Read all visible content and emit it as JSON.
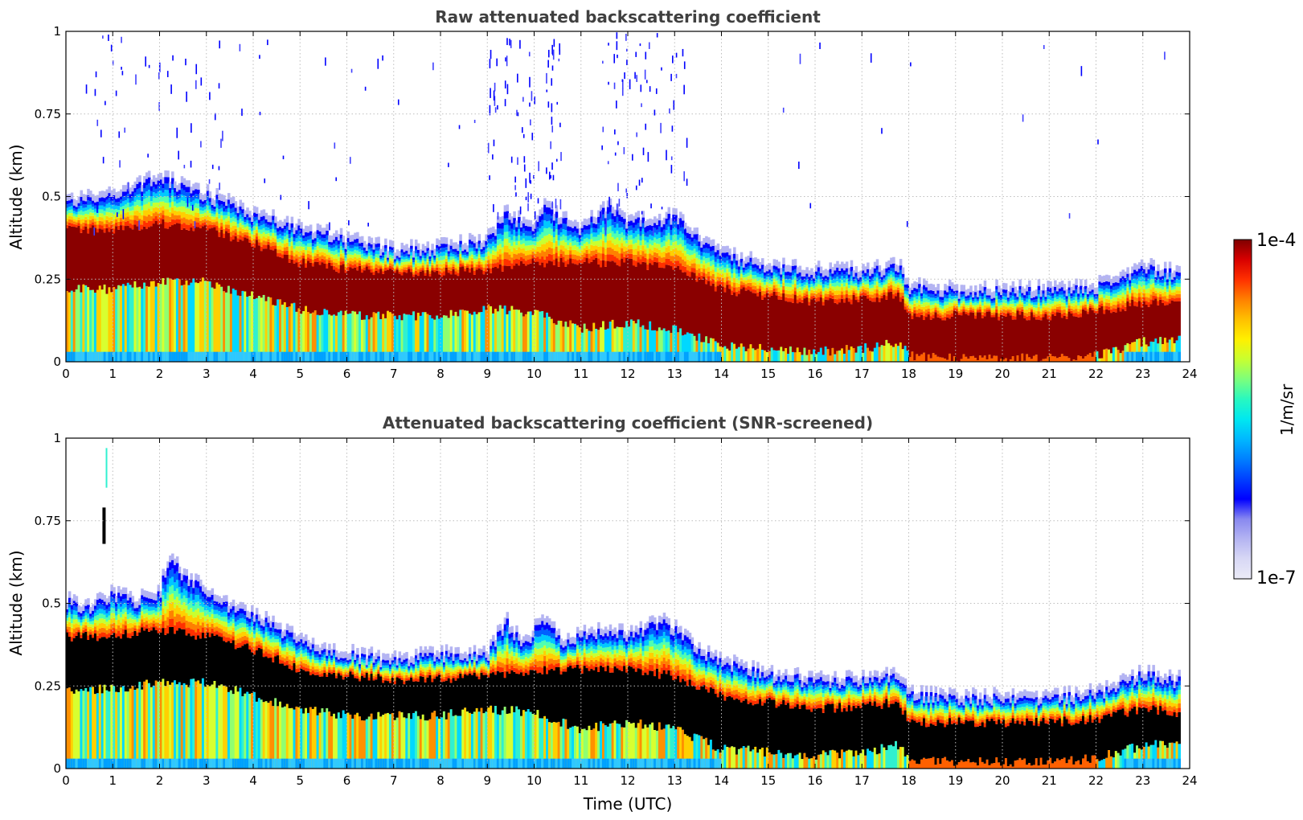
{
  "chart_data": [
    {
      "type": "heatmap",
      "title": "Raw attenuated backscattering coefficient",
      "ylabel": "Altitude (km)",
      "xlabel": "",
      "xlim": [
        0,
        24
      ],
      "ylim": [
        0,
        1
      ],
      "x_ticks": [
        "0",
        "1",
        "2",
        "3",
        "4",
        "5",
        "6",
        "7",
        "8",
        "9",
        "10",
        "11",
        "12",
        "13",
        "14",
        "15",
        "16",
        "17",
        "18",
        "19",
        "20",
        "21",
        "22",
        "23",
        "24"
      ],
      "y_ticks": [
        "0",
        "0.25",
        "0.5",
        "0.75",
        "1"
      ],
      "grid": true,
      "screened": false,
      "layer_top_km": [
        [
          0,
          0.48
        ],
        [
          1,
          0.5
        ],
        [
          2,
          0.55
        ],
        [
          3,
          0.5
        ],
        [
          4,
          0.44
        ],
        [
          5,
          0.4
        ],
        [
          6,
          0.36
        ],
        [
          7,
          0.33
        ],
        [
          8,
          0.34
        ],
        [
          9,
          0.36
        ],
        [
          9.4,
          0.44
        ],
        [
          10,
          0.4
        ],
        [
          10.2,
          0.46
        ],
        [
          11,
          0.4
        ],
        [
          11.6,
          0.46
        ],
        [
          12,
          0.42
        ],
        [
          13,
          0.43
        ],
        [
          13.5,
          0.37
        ],
        [
          14,
          0.32
        ],
        [
          15,
          0.28
        ],
        [
          16,
          0.27
        ],
        [
          17,
          0.27
        ],
        [
          17.8,
          0.28
        ],
        [
          18,
          0.22
        ],
        [
          19,
          0.21
        ],
        [
          20,
          0.21
        ],
        [
          21,
          0.21
        ],
        [
          22,
          0.22
        ],
        [
          23,
          0.28
        ],
        [
          23.8,
          0.26
        ]
      ],
      "dense_core_km": [
        [
          0,
          0.22,
          0.4
        ],
        [
          1,
          0.22,
          0.4
        ],
        [
          2,
          0.24,
          0.42
        ],
        [
          3,
          0.24,
          0.4
        ],
        [
          4,
          0.2,
          0.36
        ],
        [
          5,
          0.16,
          0.3
        ],
        [
          6,
          0.14,
          0.28
        ],
        [
          7,
          0.14,
          0.27
        ],
        [
          8,
          0.14,
          0.27
        ],
        [
          9,
          0.16,
          0.28
        ],
        [
          10,
          0.15,
          0.3
        ],
        [
          11,
          0.1,
          0.3
        ],
        [
          12,
          0.12,
          0.3
        ],
        [
          13,
          0.1,
          0.28
        ],
        [
          14,
          0.05,
          0.22
        ],
        [
          15,
          0.04,
          0.2
        ],
        [
          16,
          0.03,
          0.18
        ],
        [
          17,
          0.04,
          0.19
        ],
        [
          17.8,
          0.06,
          0.2
        ],
        [
          18,
          0.02,
          0.14
        ],
        [
          19,
          0.01,
          0.14
        ],
        [
          20,
          0.01,
          0.14
        ],
        [
          21,
          0.01,
          0.14
        ],
        [
          22,
          0.02,
          0.15
        ],
        [
          23,
          0.06,
          0.18
        ],
        [
          23.8,
          0.07,
          0.17
        ]
      ]
    },
    {
      "type": "heatmap",
      "title": "Attenuated backscattering coefficient (SNR-screened)",
      "ylabel": "Altitude (km)",
      "xlabel": "Time (UTC)",
      "xlim": [
        0,
        24
      ],
      "ylim": [
        0,
        1
      ],
      "x_ticks": [
        "0",
        "1",
        "2",
        "3",
        "4",
        "5",
        "6",
        "7",
        "8",
        "9",
        "10",
        "11",
        "12",
        "13",
        "14",
        "15",
        "16",
        "17",
        "18",
        "19",
        "20",
        "21",
        "22",
        "23",
        "24"
      ],
      "y_ticks": [
        "0",
        "0.25",
        "0.5",
        "0.75",
        "1"
      ],
      "grid": true,
      "screened": true,
      "layer_top_km": [
        [
          0,
          0.5
        ],
        [
          0.5,
          0.48
        ],
        [
          1,
          0.52
        ],
        [
          1.5,
          0.5
        ],
        [
          2,
          0.52
        ],
        [
          2.2,
          0.64
        ],
        [
          2.5,
          0.58
        ],
        [
          3,
          0.54
        ],
        [
          3.5,
          0.48
        ],
        [
          4,
          0.46
        ],
        [
          4.5,
          0.42
        ],
        [
          5,
          0.38
        ],
        [
          5.5,
          0.36
        ],
        [
          6,
          0.34
        ],
        [
          7,
          0.32
        ],
        [
          8,
          0.34
        ],
        [
          9,
          0.34
        ],
        [
          9.4,
          0.44
        ],
        [
          9.8,
          0.36
        ],
        [
          10.2,
          0.46
        ],
        [
          10.6,
          0.38
        ],
        [
          11,
          0.4
        ],
        [
          11.6,
          0.42
        ],
        [
          12,
          0.4
        ],
        [
          12.7,
          0.44
        ],
        [
          13.2,
          0.4
        ],
        [
          13.5,
          0.36
        ],
        [
          14,
          0.32
        ],
        [
          15,
          0.28
        ],
        [
          16,
          0.26
        ],
        [
          17,
          0.26
        ],
        [
          17.7,
          0.28
        ],
        [
          18,
          0.22
        ],
        [
          19,
          0.21
        ],
        [
          20,
          0.21
        ],
        [
          21,
          0.21
        ],
        [
          22,
          0.22
        ],
        [
          23,
          0.28
        ],
        [
          23.8,
          0.26
        ]
      ],
      "dense_core_km": [
        [
          0,
          0.24,
          0.4
        ],
        [
          1,
          0.24,
          0.4
        ],
        [
          2,
          0.26,
          0.42
        ],
        [
          3,
          0.26,
          0.4
        ],
        [
          4,
          0.22,
          0.36
        ],
        [
          5,
          0.18,
          0.3
        ],
        [
          6,
          0.16,
          0.28
        ],
        [
          7,
          0.16,
          0.27
        ],
        [
          8,
          0.16,
          0.27
        ],
        [
          9,
          0.18,
          0.28
        ],
        [
          10,
          0.17,
          0.3
        ],
        [
          11,
          0.12,
          0.3
        ],
        [
          12,
          0.14,
          0.3
        ],
        [
          13,
          0.12,
          0.28
        ],
        [
          14,
          0.06,
          0.22
        ],
        [
          15,
          0.05,
          0.2
        ],
        [
          16,
          0.04,
          0.18
        ],
        [
          17,
          0.05,
          0.19
        ],
        [
          17.8,
          0.07,
          0.2
        ],
        [
          18,
          0.03,
          0.14
        ],
        [
          19,
          0.02,
          0.14
        ],
        [
          20,
          0.02,
          0.14
        ],
        [
          21,
          0.02,
          0.14
        ],
        [
          22,
          0.03,
          0.15
        ],
        [
          23,
          0.07,
          0.18
        ],
        [
          23.8,
          0.08,
          0.17
        ]
      ]
    }
  ],
  "colorbar": {
    "max_label": "1e-4",
    "min_label": "1e-7",
    "unit_label": "1/m/sr",
    "colors": [
      "#ebebf7",
      "#d8d8f5",
      "#b4b4f2",
      "#8888f0",
      "#0000ff",
      "#0040ff",
      "#0080ff",
      "#00b8ff",
      "#00e8f0",
      "#28f8c0",
      "#7cff7c",
      "#c8ff30",
      "#fff000",
      "#ffc000",
      "#ff8000",
      "#ff3000",
      "#d80000",
      "#7f0000"
    ]
  },
  "colors": {
    "saturated_screened": "#000000",
    "grid": "#bdbdbd",
    "background": "#ffffff"
  }
}
